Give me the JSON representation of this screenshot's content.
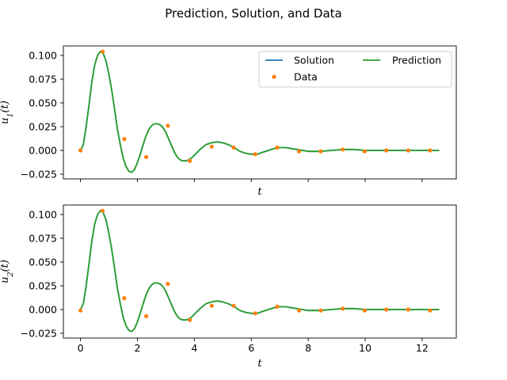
{
  "figure": {
    "title": "Prediction, Solution, and Data"
  },
  "colors": {
    "solution": "#1f77b4",
    "prediction": "#2ca02c",
    "data": "#ff7f0e"
  },
  "legend": {
    "solution": "Solution",
    "data": "Data",
    "prediction": "Prediction",
    "placement": "top-right",
    "columns": 2
  },
  "chart_data": [
    {
      "type": "line",
      "xlabel": "t",
      "ylabel": "u_1(t)",
      "xlim": [
        -0.6,
        13.2
      ],
      "ylim": [
        -0.03,
        0.11
      ],
      "xticks": [
        0,
        2,
        4,
        6,
        8,
        10,
        12
      ],
      "show_xtick_labels": false,
      "yticks": [
        -0.025,
        0.0,
        0.025,
        0.05,
        0.075,
        0.1
      ],
      "ytick_labels": [
        "−0.025",
        "0.000",
        "0.025",
        "0.050",
        "0.075",
        "0.100"
      ],
      "legend": true,
      "curve": {
        "x": [
          0,
          0.1,
          0.2,
          0.3,
          0.4,
          0.5,
          0.6,
          0.7,
          0.8,
          0.9,
          1.0,
          1.1,
          1.2,
          1.3,
          1.4,
          1.5,
          1.6,
          1.7,
          1.8,
          1.9,
          2.0,
          2.1,
          2.2,
          2.3,
          2.4,
          2.5,
          2.6,
          2.7,
          2.8,
          2.9,
          3.0,
          3.1,
          3.2,
          3.3,
          3.4,
          3.5,
          3.6,
          3.7,
          3.8,
          3.9,
          4.0,
          4.2,
          4.4,
          4.6,
          4.8,
          5.0,
          5.2,
          5.4,
          5.6,
          5.8,
          6.0,
          6.2,
          6.4,
          6.6,
          6.8,
          7.0,
          7.2,
          7.4,
          7.6,
          7.8,
          8.0,
          8.4,
          8.8,
          9.2,
          9.6,
          10.0,
          10.4,
          10.8,
          11.2,
          11.6,
          12.0,
          12.4,
          12.6
        ],
        "y": [
          0.0,
          0.006,
          0.025,
          0.048,
          0.072,
          0.09,
          0.1,
          0.104,
          0.102,
          0.094,
          0.08,
          0.063,
          0.043,
          0.022,
          0.006,
          -0.008,
          -0.017,
          -0.022,
          -0.023,
          -0.02,
          -0.013,
          -0.004,
          0.006,
          0.015,
          0.022,
          0.026,
          0.028,
          0.028,
          0.027,
          0.024,
          0.019,
          0.012,
          0.005,
          -0.002,
          -0.007,
          -0.01,
          -0.011,
          -0.011,
          -0.01,
          -0.008,
          -0.005,
          0.001,
          0.006,
          0.008,
          0.009,
          0.008,
          0.006,
          0.003,
          -0.001,
          -0.003,
          -0.004,
          -0.004,
          -0.002,
          0.0,
          0.002,
          0.003,
          0.003,
          0.002,
          0.001,
          0.0,
          -0.001,
          -0.001,
          0.0,
          0.001,
          0.001,
          0.0,
          0.0,
          0.0,
          0.0,
          0.0,
          0.0,
          0.0,
          0.0
        ]
      },
      "data_points": {
        "x": [
          0.0,
          0.78,
          1.54,
          2.31,
          3.07,
          3.84,
          4.61,
          5.38,
          6.14,
          6.91,
          7.68,
          8.44,
          9.21,
          9.98,
          10.74,
          11.51,
          12.28
        ],
        "y": [
          0.0,
          0.104,
          0.012,
          -0.007,
          0.026,
          -0.011,
          0.004,
          0.003,
          -0.004,
          0.003,
          -0.001,
          -0.001,
          0.001,
          -0.001,
          0.0,
          0.0,
          0.0
        ]
      }
    },
    {
      "type": "line",
      "xlabel": "t",
      "ylabel": "u_2(t)",
      "xlim": [
        -0.6,
        13.2
      ],
      "ylim": [
        -0.03,
        0.11
      ],
      "xticks": [
        0,
        2,
        4,
        6,
        8,
        10,
        12
      ],
      "xtick_labels": [
        "0",
        "2",
        "4",
        "6",
        "8",
        "10",
        "12"
      ],
      "show_xtick_labels": true,
      "yticks": [
        -0.025,
        0.0,
        0.025,
        0.05,
        0.075,
        0.1
      ],
      "ytick_labels": [
        "−0.025",
        "0.000",
        "0.025",
        "0.050",
        "0.075",
        "0.100"
      ],
      "legend": false,
      "curve": {
        "x": [
          0,
          0.1,
          0.2,
          0.3,
          0.4,
          0.5,
          0.6,
          0.7,
          0.8,
          0.9,
          1.0,
          1.1,
          1.2,
          1.3,
          1.4,
          1.5,
          1.6,
          1.7,
          1.8,
          1.9,
          2.0,
          2.1,
          2.2,
          2.3,
          2.4,
          2.5,
          2.6,
          2.7,
          2.8,
          2.9,
          3.0,
          3.1,
          3.2,
          3.3,
          3.4,
          3.5,
          3.6,
          3.7,
          3.8,
          3.9,
          4.0,
          4.2,
          4.4,
          4.6,
          4.8,
          5.0,
          5.2,
          5.4,
          5.6,
          5.8,
          6.0,
          6.2,
          6.4,
          6.6,
          6.8,
          7.0,
          7.2,
          7.4,
          7.6,
          7.8,
          8.0,
          8.4,
          8.8,
          9.2,
          9.6,
          10.0,
          10.4,
          10.8,
          11.2,
          11.6,
          12.0,
          12.4,
          12.6
        ],
        "y": [
          0.0,
          0.006,
          0.025,
          0.048,
          0.072,
          0.09,
          0.1,
          0.104,
          0.102,
          0.094,
          0.08,
          0.063,
          0.043,
          0.022,
          0.006,
          -0.008,
          -0.017,
          -0.022,
          -0.023,
          -0.02,
          -0.013,
          -0.004,
          0.006,
          0.015,
          0.022,
          0.026,
          0.028,
          0.028,
          0.027,
          0.024,
          0.019,
          0.012,
          0.005,
          -0.002,
          -0.007,
          -0.01,
          -0.011,
          -0.011,
          -0.01,
          -0.008,
          -0.005,
          0.001,
          0.006,
          0.008,
          0.009,
          0.008,
          0.006,
          0.003,
          -0.001,
          -0.003,
          -0.004,
          -0.004,
          -0.002,
          0.0,
          0.002,
          0.003,
          0.003,
          0.002,
          0.001,
          0.0,
          -0.001,
          -0.001,
          0.0,
          0.001,
          0.001,
          0.0,
          0.0,
          0.0,
          0.0,
          0.0,
          0.0,
          0.0,
          0.0
        ]
      },
      "data_points": {
        "x": [
          0.0,
          0.78,
          1.54,
          2.31,
          3.07,
          3.84,
          4.61,
          5.38,
          6.14,
          6.91,
          7.68,
          8.44,
          9.21,
          9.98,
          10.74,
          11.51,
          12.28
        ],
        "y": [
          -0.001,
          0.104,
          0.012,
          -0.007,
          0.027,
          -0.011,
          0.004,
          0.004,
          -0.004,
          0.003,
          -0.001,
          -0.001,
          0.001,
          -0.001,
          0.0,
          0.0,
          -0.001
        ]
      }
    }
  ]
}
